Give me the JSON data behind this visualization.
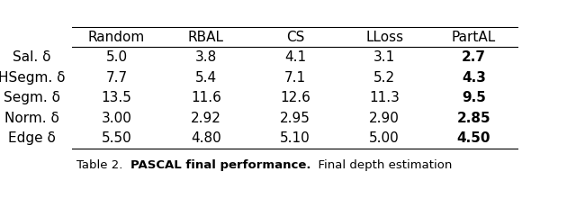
{
  "columns": [
    "Random",
    "RBAL",
    "CS",
    "LLoss",
    "PartAL"
  ],
  "rows": [
    [
      "Sal. δ",
      "5.0",
      "3.8",
      "4.1",
      "3.1",
      "2.7"
    ],
    [
      "HSegm. δ",
      "7.7",
      "5.4",
      "7.1",
      "5.2",
      "4.3"
    ],
    [
      "Segm. δ",
      "13.5",
      "11.6",
      "12.6",
      "11.3",
      "9.5"
    ],
    [
      "Norm. δ",
      "3.00",
      "2.92",
      "2.95",
      "2.90",
      "2.85"
    ],
    [
      "Edge δ",
      "5.50",
      "4.80",
      "5.10",
      "5.00",
      "4.50"
    ]
  ],
  "fig_width": 6.4,
  "fig_height": 2.21,
  "dpi": 100,
  "fontsize": 11,
  "caption_regular1": "Table 2.  ",
  "caption_bold": "PASCAL final performance.",
  "caption_regular2": "  Final depth estimation"
}
